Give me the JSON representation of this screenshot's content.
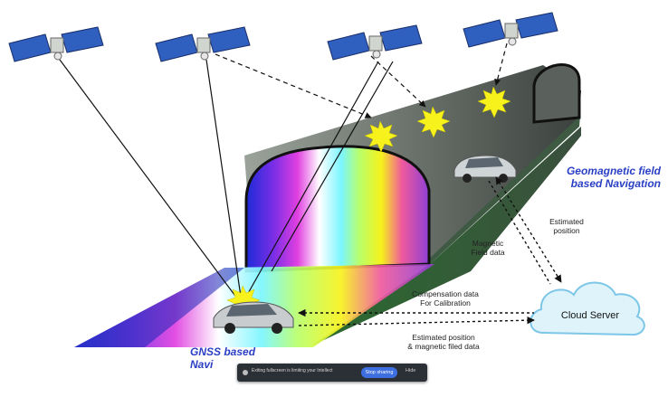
{
  "labels": {
    "geomagnetic_line1": "Geomagnetic field",
    "geomagnetic_line2": "based Navigation",
    "gnss_line1": "GNSS based",
    "gnss_line2": "Navi",
    "estimated_position_line1": "Estimated",
    "estimated_position_line2": "position",
    "magnetic_field_line1": "Magnetic",
    "magnetic_field_line2": "Field data",
    "compensation_line1": "Compensation data",
    "compensation_line2": "For Calibration",
    "estimated_magnetic_line1": "Estimated position",
    "estimated_magnetic_line2": "& magnetic filed data",
    "cloud_server": "Cloud Server"
  },
  "toast": {
    "message": "Exiting fullscreen is limiting your Intellect",
    "action": "Stop sharing",
    "dismiss": "Hide"
  },
  "colors": {
    "label_blue": "#2a3fc4",
    "tunnel_dark": "#3f4a42",
    "tunnel_green": "#2f7a37",
    "cloud_fill": "#dff3fb",
    "cloud_stroke": "#7cc7e8",
    "sun_yellow": "#f7f21b"
  }
}
